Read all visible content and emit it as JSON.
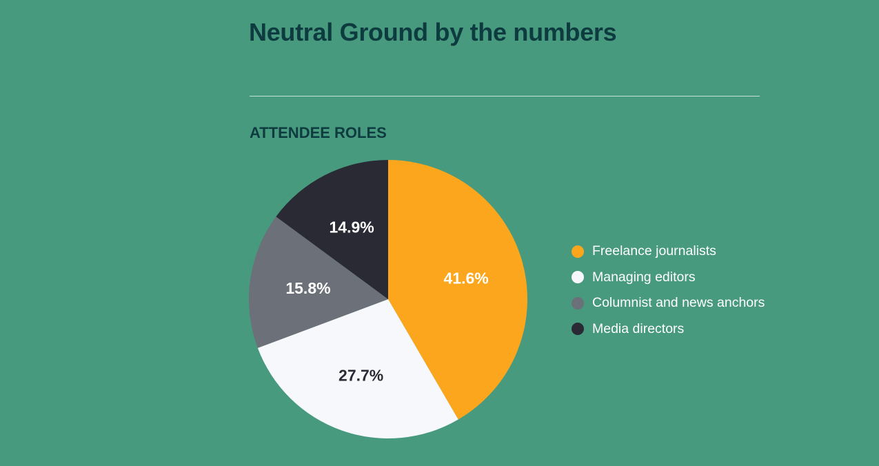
{
  "header": {
    "title": "Neutral Ground by the numbers"
  },
  "section": {
    "title": "ATTENDEE ROLES"
  },
  "colors": {
    "background": "#479a7e",
    "heading": "#0e3b3f",
    "divider": "#c7e1d7"
  },
  "chart_data": {
    "type": "pie",
    "title": "ATTENDEE ROLES",
    "legend_position": "right",
    "slices": [
      {
        "label": "Freelance journalists",
        "value": 41.6,
        "display": "41.6%",
        "color": "#fba61c",
        "text_color": "#ffffff"
      },
      {
        "label": "Managing editors",
        "value": 27.7,
        "display": "27.7%",
        "color": "#f6f8fc",
        "text_color": "#2a2a35"
      },
      {
        "label": "Columnist and news anchors",
        "value": 15.8,
        "display": "15.8%",
        "color": "#6c7079",
        "text_color": "#ffffff"
      },
      {
        "label": "Media directors",
        "value": 14.9,
        "display": "14.9%",
        "color": "#2a2a35",
        "text_color": "#ffffff"
      }
    ]
  }
}
